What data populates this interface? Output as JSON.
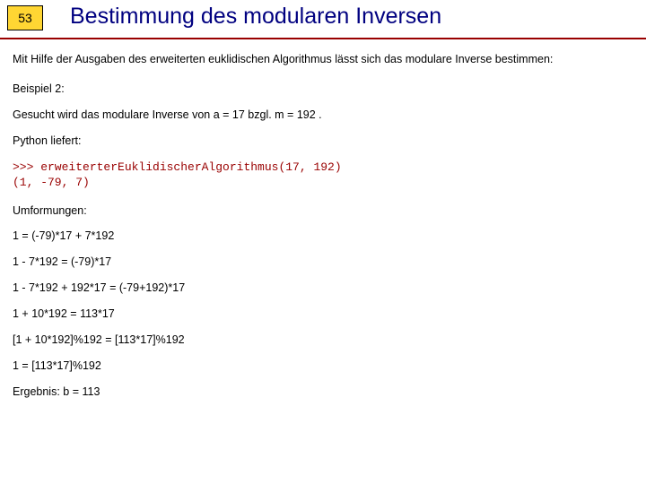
{
  "page_number": "53",
  "title": "Bestimmung des modularen Inversen",
  "colors": {
    "page_num_bg": "#ffd633",
    "underline": "#990000",
    "title_color": "#000080",
    "code_color": "#990000",
    "text_color": "#000000"
  },
  "intro": "Mit Hilfe der Ausgaben des erweiterten euklidischen Algorithmus lässt sich das modulare Inverse bestimmen:",
  "example_label": "Beispiel 2:",
  "sought": "Gesucht wird das modulare Inverse von a = 17 bzgl. m = 192 .",
  "python_label": "Python liefert:",
  "code_line1": ">>> erweiterterEuklidischerAlgorithmus(17, 192)",
  "code_line2": "(1, -79, 7)",
  "transform_label": "Umformungen:",
  "steps": [
    "1 = (-79)*17 + 7*192",
    "1 - 7*192 = (-79)*17",
    "1 - 7*192 + 192*17 = (-79+192)*17",
    "1 + 10*192 = 113*17",
    "[1 + 10*192]%192 = [113*17]%192",
    "1 = [113*17]%192"
  ],
  "result": "Ergebnis: b = 113"
}
